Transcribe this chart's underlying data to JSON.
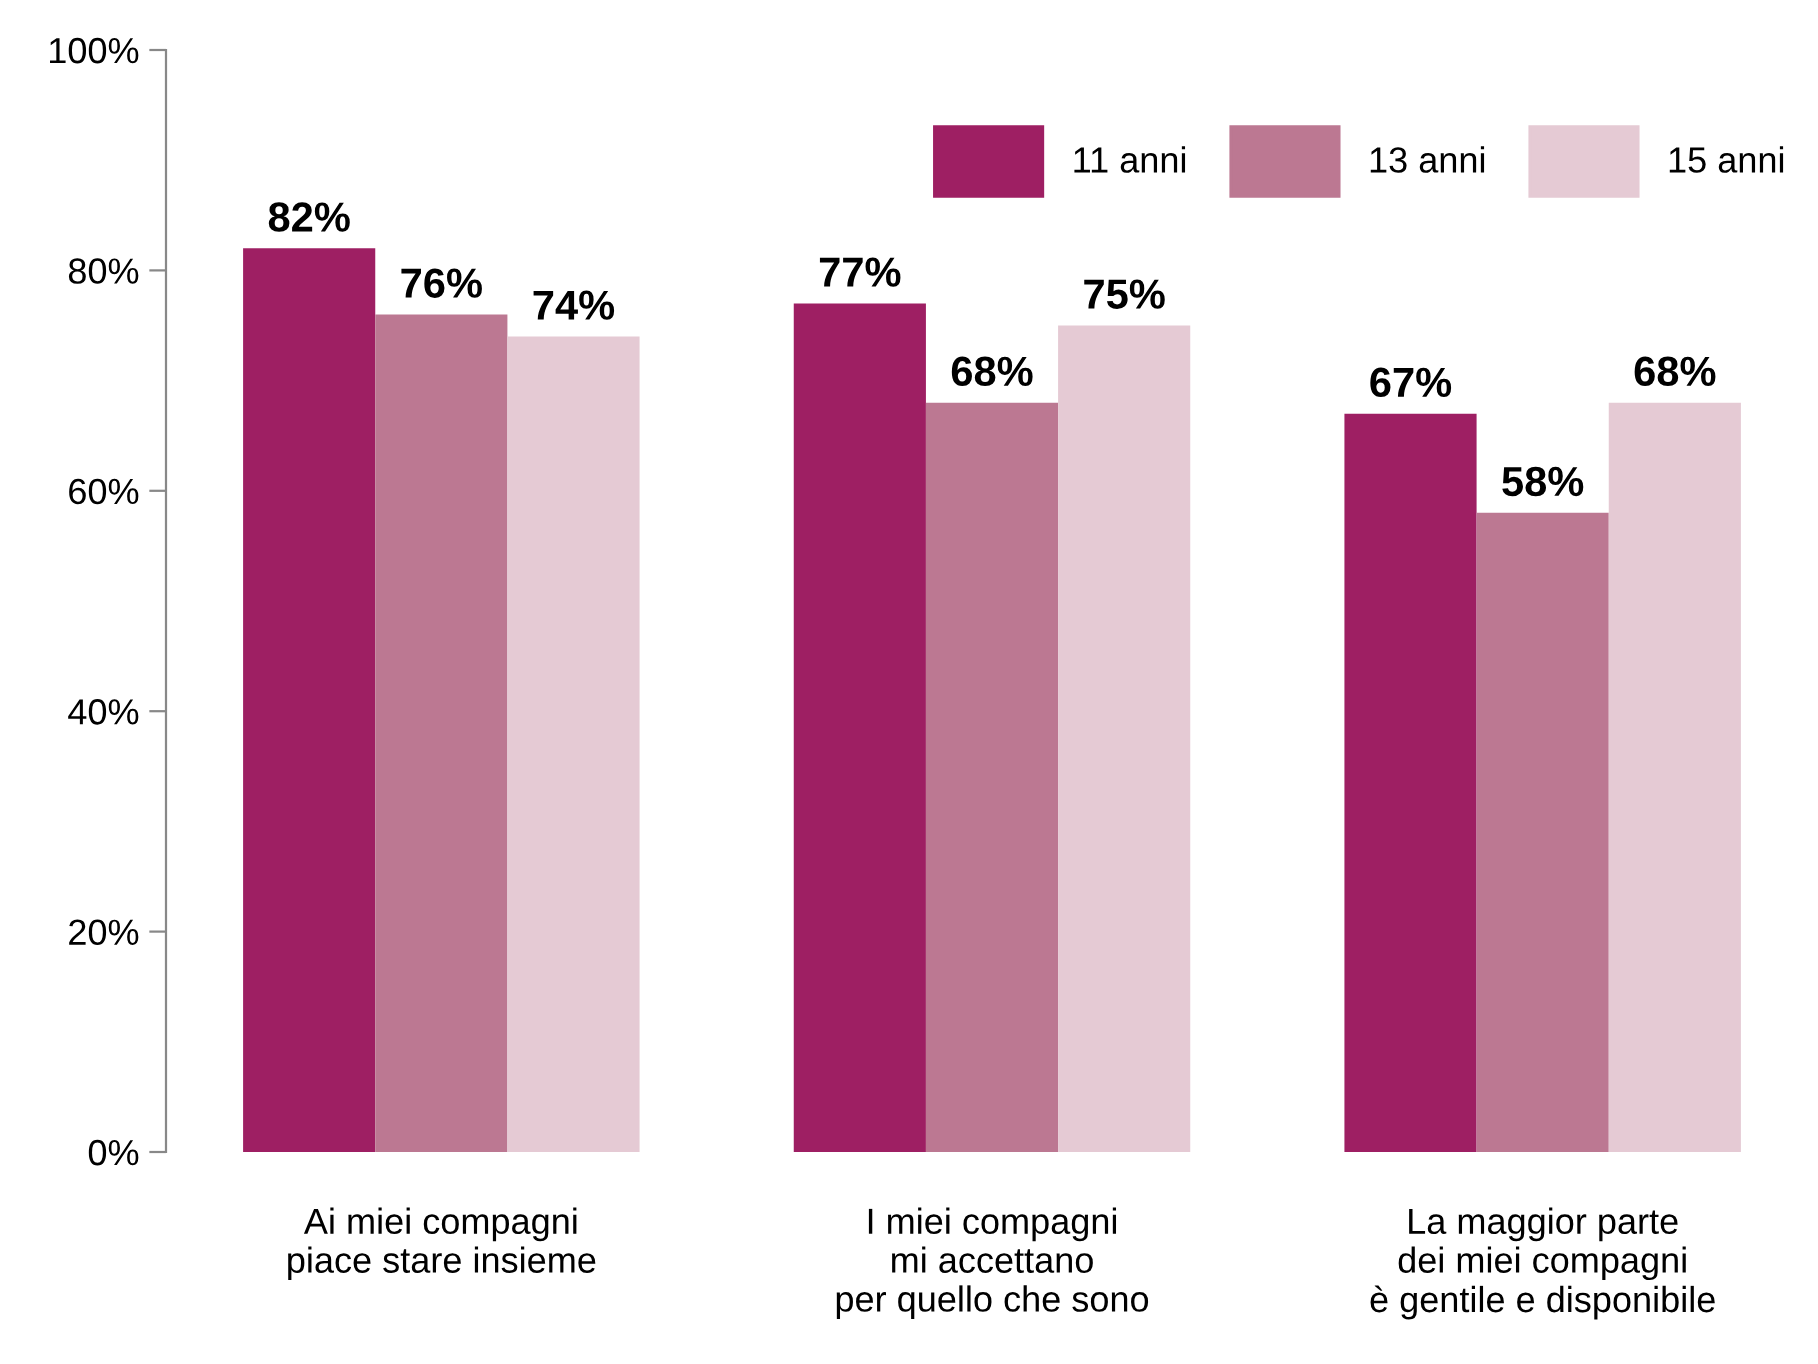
{
  "chart_data": {
    "type": "bar",
    "categories": [
      "Ai miei compagni\npiace stare insieme",
      "I miei compagni\nmi accettano\nper quello che sono",
      "La maggior parte\ndei miei compagni\nè gentile e disponibile"
    ],
    "series": [
      {
        "name": "11 anni",
        "color": "#9e1f63",
        "values": [
          82,
          77,
          67
        ],
        "value_labels": [
          "82%",
          "77%",
          "67%"
        ]
      },
      {
        "name": "13 anni",
        "color": "#bc7892",
        "values": [
          76,
          68,
          58
        ],
        "value_labels": [
          "76%",
          "68%",
          "58%"
        ]
      },
      {
        "name": "15 anni",
        "color": "#e5cad4",
        "values": [
          74,
          75,
          68
        ],
        "value_labels": [
          "74%",
          "75%",
          "68%"
        ]
      }
    ],
    "ylim": [
      0,
      100
    ],
    "yticks": [
      {
        "value": 0,
        "label": "0%"
      },
      {
        "value": 20,
        "label": "20%"
      },
      {
        "value": 40,
        "label": "40%"
      },
      {
        "value": 60,
        "label": "60%"
      },
      {
        "value": 80,
        "label": "80%"
      },
      {
        "value": 100,
        "label": "100%"
      }
    ],
    "legend": "top right",
    "grid": false
  }
}
